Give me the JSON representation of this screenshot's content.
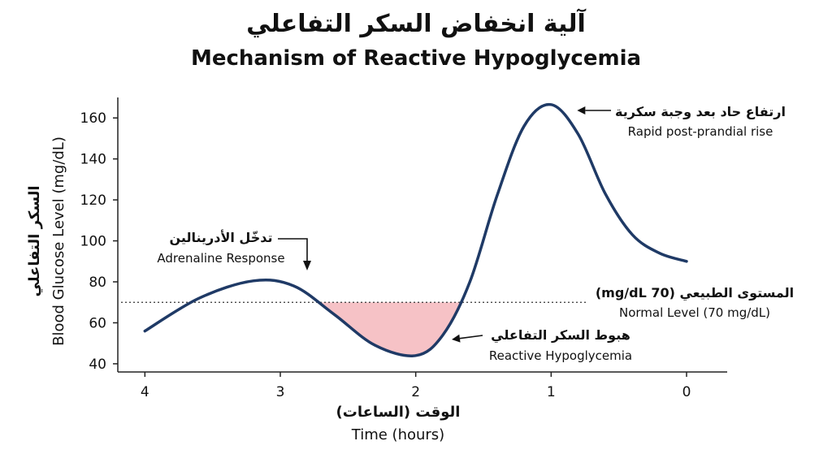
{
  "title_ar": "آلية انخفاض السكر التفاعلي",
  "title_en": "Mechanism of Reactive Hypoglycemia",
  "chart_data": {
    "type": "line",
    "title": "Mechanism of Reactive Hypoglycemia",
    "xlabel_ar": "الوقت (الساعات)",
    "xlabel_en": "Time (hours)",
    "ylabel_ar": "السكر التفاعلي",
    "ylabel_en": "Blood Glucose Level (mg/dL)",
    "x_reversed": true,
    "xlim": [
      4.2,
      -0.3
    ],
    "ylim": [
      36,
      170
    ],
    "x_ticks": [
      4,
      3,
      2,
      1,
      0
    ],
    "y_ticks": [
      40,
      60,
      80,
      100,
      120,
      140,
      160
    ],
    "reference_line": {
      "y": 70,
      "style": "dotted"
    },
    "series": [
      {
        "name": "Blood glucose",
        "color": "#1f3a66",
        "x": [
          4.0,
          3.6,
          3.2,
          2.9,
          2.6,
          2.3,
          2.0,
          1.8,
          1.6,
          1.4,
          1.2,
          1.0,
          0.8,
          0.6,
          0.4,
          0.2,
          0.0
        ],
        "y": [
          56,
          72,
          80.5,
          78,
          64,
          49,
          44,
          54,
          80,
          122,
          156,
          166.5,
          152,
          123,
          103,
          94,
          90
        ]
      }
    ],
    "shaded_region": {
      "color": "#f6c2c6",
      "below": 70,
      "x_from": 2.8,
      "x_to": 1.65
    },
    "annotations": [
      {
        "id": "rapid-rise",
        "ar": "ارتفاع حاد بعد وجبة سكرية",
        "en": "Rapid post-prandial rise",
        "target_x": 1.0,
        "target_y": 166.5
      },
      {
        "id": "adrenaline",
        "ar": "تدخّل الأدرينالين",
        "en": "Adrenaline Response",
        "target_x": 2.8,
        "target_y": 83
      },
      {
        "id": "normal-level",
        "ar": "المستوى الطبيعي (70 mg/dL)",
        "en": "Normal Level (70 mg/dL)",
        "target_x": 0.0,
        "target_y": 70
      },
      {
        "id": "hypoglycemia",
        "ar": "هبوط السكر التفاعلي",
        "en": "Reactive Hypoglycemia",
        "target_x": 1.8,
        "target_y": 45
      }
    ]
  }
}
